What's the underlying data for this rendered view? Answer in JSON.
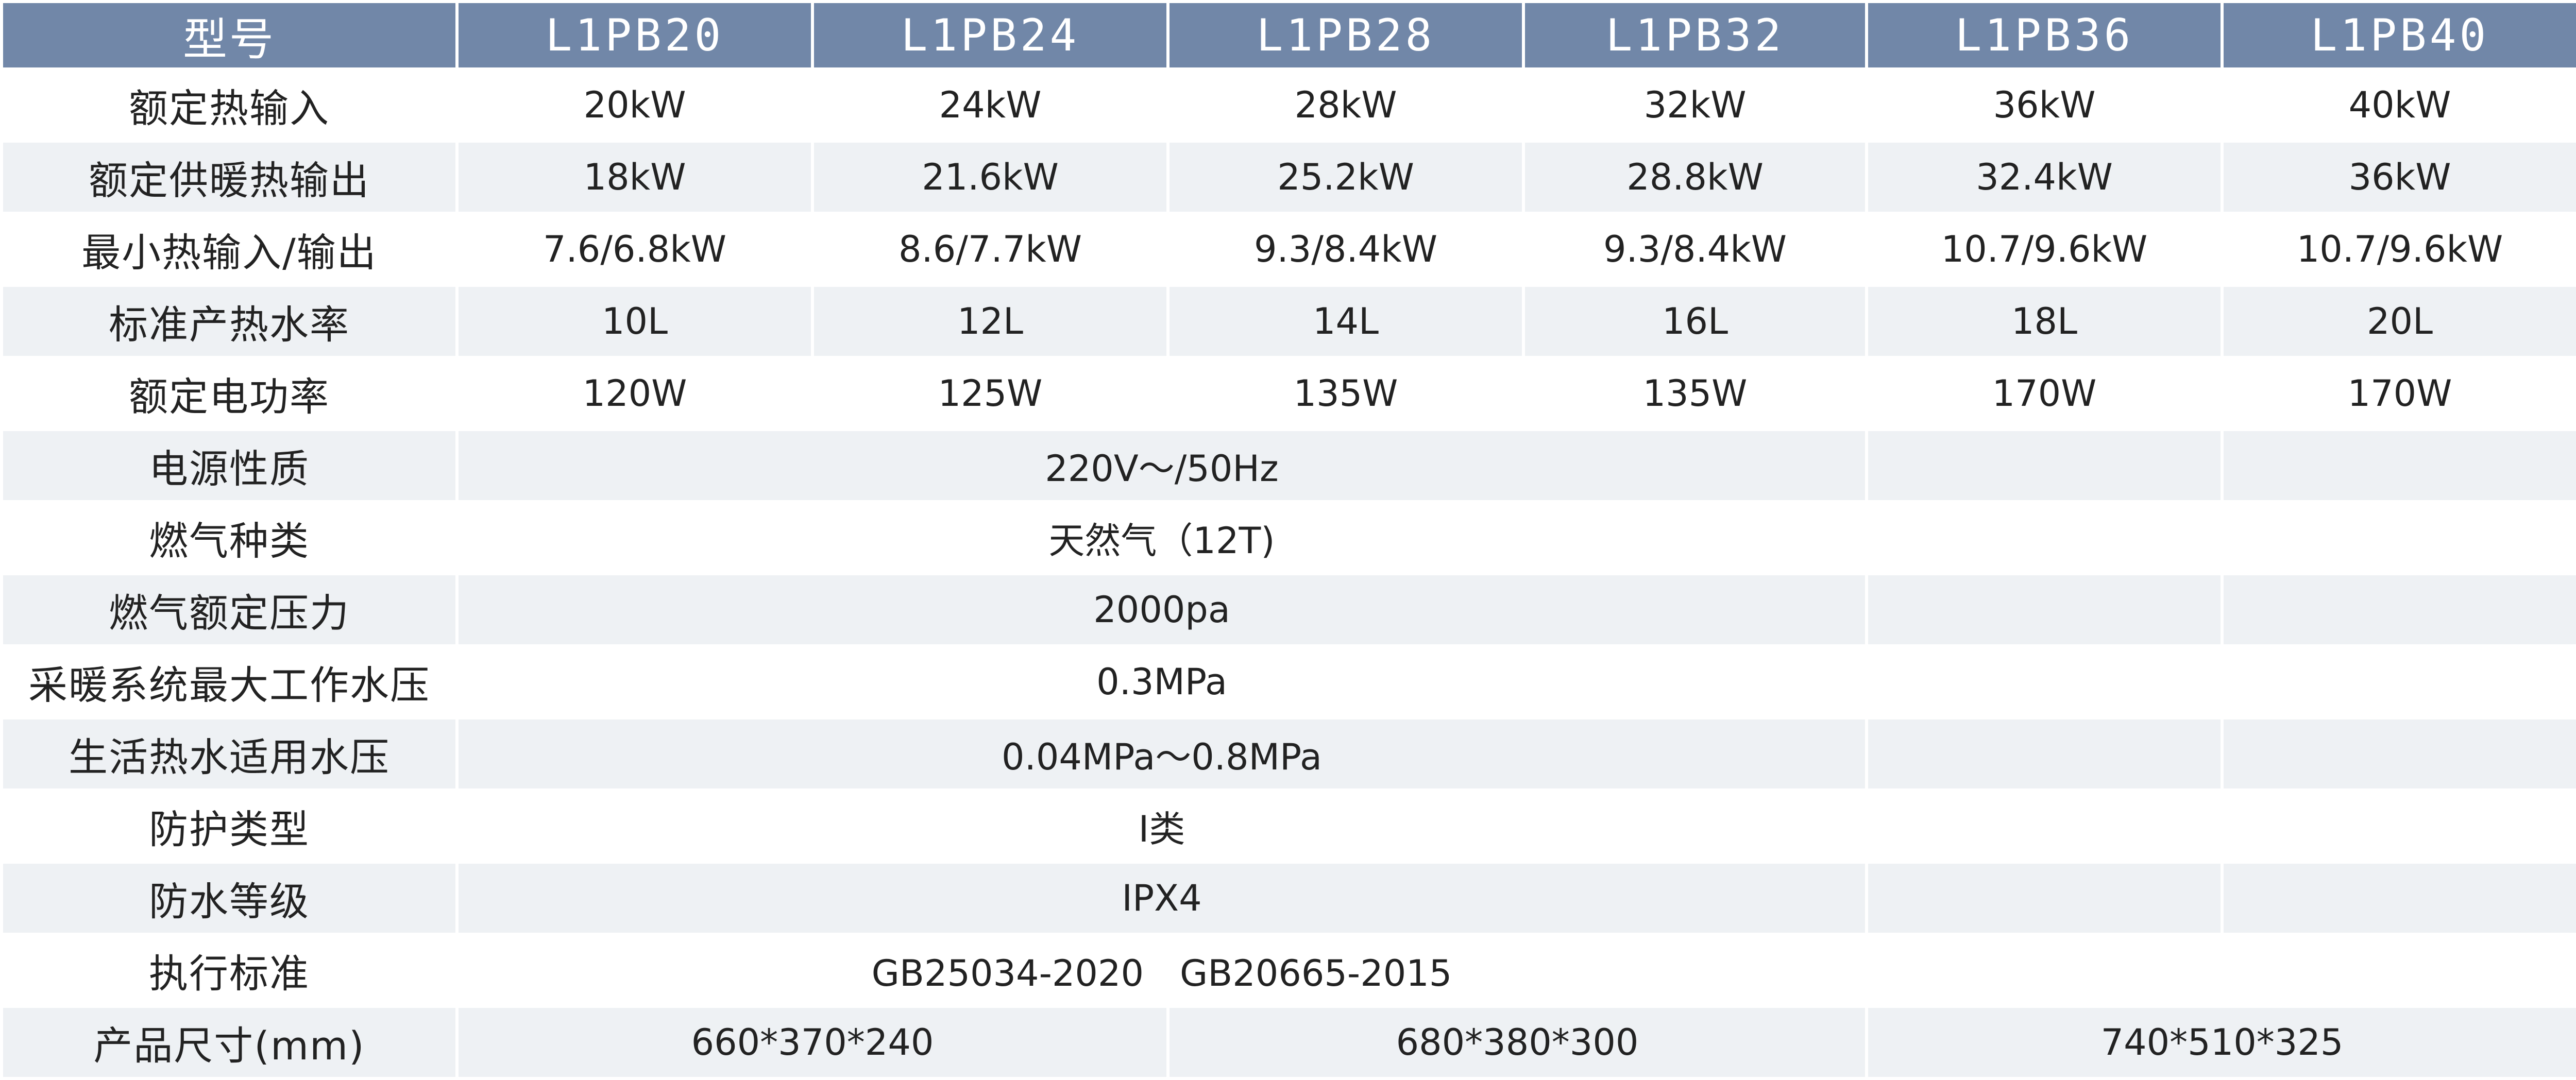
{
  "header": {
    "label": "型号",
    "models": [
      "L1PB20",
      "L1PB24",
      "L1PB28",
      "L1PB32",
      "L1PB36",
      "L1PB40"
    ]
  },
  "rows": {
    "rated_heat_input": {
      "label": "额定热输入",
      "values": [
        "20kW",
        "24kW",
        "28kW",
        "32kW",
        "36kW",
        "40kW"
      ]
    },
    "rated_heating_output": {
      "label": "额定供暖热输出",
      "values": [
        "18kW",
        "21.6kW",
        "25.2kW",
        "28.8kW",
        "32.4kW",
        "36kW"
      ]
    },
    "min_heat_input_output": {
      "label": "最小热输入/输出",
      "values": [
        "7.6/6.8kW",
        "8.6/7.7kW",
        "9.3/8.4kW",
        "9.3/8.4kW",
        "10.7/9.6kW",
        "10.7/9.6kW"
      ]
    },
    "standard_hot_water_rate": {
      "label": "标准产热水率",
      "values": [
        "10L",
        "12L",
        "14L",
        "16L",
        "18L",
        "20L"
      ]
    },
    "rated_power": {
      "label": "额定电功率",
      "values": [
        "120W",
        "125W",
        "135W",
        "135W",
        "170W",
        "170W"
      ]
    },
    "power_supply": {
      "label": "电源性质",
      "value": "220V～/50Hz"
    },
    "gas_type": {
      "label": "燃气种类",
      "value": "天然气（12T)"
    },
    "gas_rated_pressure": {
      "label": "燃气额定压力",
      "value": "2000pa"
    },
    "heating_max_pressure": {
      "label": "采暖系统最大工作水压",
      "value": "0.3MPa"
    },
    "domestic_water_pressure": {
      "label": "生活热水适用水压",
      "value": "0.04MPa～0.8MPa"
    },
    "protection_type": {
      "label": "防护类型",
      "value": "I类"
    },
    "waterproof_grade": {
      "label": "防水等级",
      "value": "IPX4"
    },
    "standards": {
      "label": "执行标准",
      "value": "GB25034-2020　GB20665-2015"
    },
    "product_size": {
      "label": "产品尺寸(mm)",
      "values": [
        "660*370*240",
        "680*380*300",
        "740*510*325"
      ]
    }
  },
  "colors": {
    "header_bg": "#7187a8",
    "header_text": "#ffffff",
    "row_odd_bg": "#ffffff",
    "row_even_bg": "#eef1f4",
    "text": "#222222"
  }
}
